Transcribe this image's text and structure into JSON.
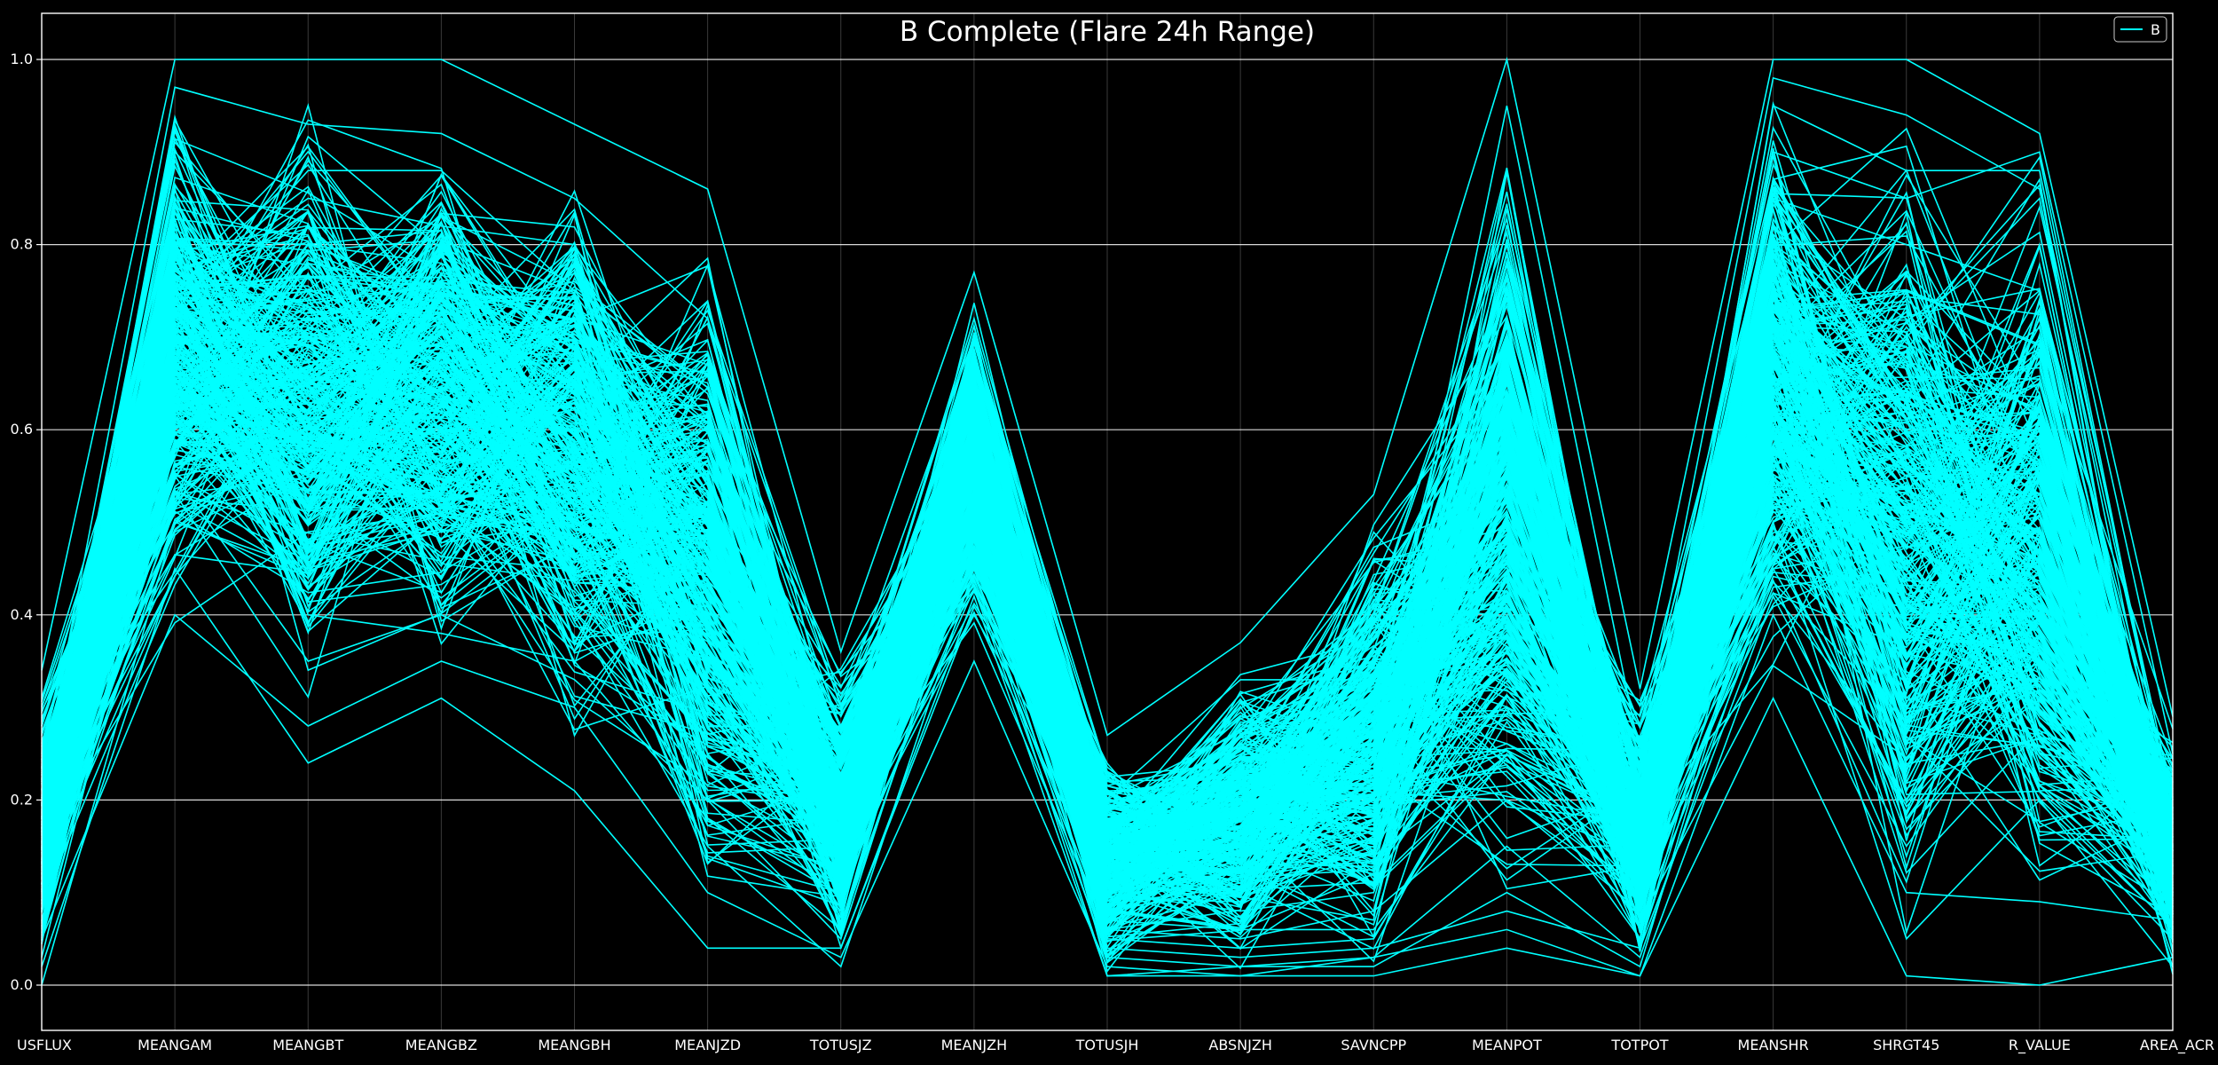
{
  "chart_data": {
    "type": "parallel-coordinates",
    "title": "B Complete (Flare 24h Range)",
    "axes": [
      "USFLUX",
      "MEANGAM",
      "MEANGBT",
      "MEANGBZ",
      "MEANGBH",
      "MEANJZD",
      "TOTUSJZ",
      "MEANJZH",
      "TOTUSJH",
      "ABSNJZH",
      "SAVNCPP",
      "MEANPOT",
      "TOTPOT",
      "MEANSHR",
      "SHRGT45",
      "R_VALUE",
      "AREA_ACR"
    ],
    "ylim": [
      0.0,
      1.0
    ],
    "yticks": [
      "0.0",
      "0.2",
      "0.4",
      "0.6",
      "0.8",
      "1.0"
    ],
    "grid": true,
    "legend": {
      "entries": [
        "B"
      ],
      "placement": "top-right"
    },
    "line_color": "#00ffff",
    "background": "#000000",
    "series_name": "B",
    "typical_range": {
      "USFLUX": [
        0.0,
        0.34
      ],
      "MEANGAM": [
        0.37,
        1.0
      ],
      "MEANGBT": [
        0.24,
        1.0
      ],
      "MEANGBZ": [
        0.31,
        1.0
      ],
      "MEANGBH": [
        0.21,
        0.93
      ],
      "MEANJZD": [
        0.03,
        0.86
      ],
      "TOTUSJZ": [
        0.0,
        0.36
      ],
      "MEANJZH": [
        0.35,
        0.77
      ],
      "TOTUSJH": [
        0.0,
        0.27
      ],
      "ABSNJZH": [
        0.0,
        0.37
      ],
      "SAVNCPP": [
        0.0,
        0.53
      ],
      "MEANPOT": [
        0.04,
        1.0
      ],
      "TOTPOT": [
        0.0,
        0.32
      ],
      "MEANSHR": [
        0.31,
        1.0
      ],
      "SHRGT45": [
        0.01,
        1.0
      ],
      "R_VALUE": [
        0.0,
        0.92
      ],
      "AREA_ACR": [
        0.0,
        0.29
      ]
    },
    "series": [
      {
        "name": "B",
        "values": [
          0.02,
          0.45,
          0.24,
          0.31,
          0.21,
          0.04,
          0.04,
          0.42,
          0.01,
          0.01,
          0.03,
          0.06,
          0.01,
          0.4,
          0.1,
          0.09,
          0.07
        ]
      },
      {
        "name": "B",
        "values": [
          0.34,
          1.0,
          1.0,
          1.0,
          0.93,
          0.86,
          0.36,
          0.77,
          0.27,
          0.37,
          0.53,
          1.0,
          0.32,
          1.0,
          1.0,
          0.92,
          0.29
        ]
      },
      {
        "name": "B",
        "values": [
          0.05,
          0.4,
          0.28,
          0.35,
          0.3,
          0.1,
          0.03,
          0.35,
          0.02,
          0.01,
          0.01,
          0.04,
          0.01,
          0.31,
          0.01,
          0.0,
          0.03
        ]
      },
      {
        "name": "B",
        "values": [
          0.1,
          0.7,
          0.7,
          0.69,
          0.6,
          0.3,
          0.1,
          0.6,
          0.05,
          0.04,
          0.05,
          0.3,
          0.05,
          0.7,
          0.5,
          0.7,
          0.1
        ]
      },
      {
        "name": "B",
        "values": [
          0.22,
          0.97,
          0.93,
          0.92,
          0.85,
          0.72,
          0.3,
          0.7,
          0.2,
          0.17,
          0.25,
          0.95,
          0.25,
          0.98,
          0.94,
          0.86,
          0.2
        ]
      },
      {
        "name": "B",
        "values": [
          0.08,
          0.55,
          0.35,
          0.4,
          0.33,
          0.2,
          0.05,
          0.5,
          0.03,
          0.02,
          0.03,
          0.15,
          0.03,
          0.45,
          0.2,
          0.4,
          0.05
        ]
      },
      {
        "name": "B",
        "values": [
          0.03,
          0.6,
          0.8,
          0.78,
          0.7,
          0.4,
          0.15,
          0.55,
          0.1,
          0.08,
          0.1,
          0.5,
          0.1,
          0.8,
          0.7,
          0.85,
          0.15
        ]
      },
      {
        "name": "B",
        "values": [
          0.15,
          0.85,
          0.6,
          0.55,
          0.5,
          0.25,
          0.08,
          0.65,
          0.06,
          0.05,
          0.08,
          0.2,
          0.08,
          0.6,
          0.3,
          0.55,
          0.08
        ]
      },
      {
        "name": "B",
        "values": [
          0.0,
          0.5,
          0.45,
          0.5,
          0.45,
          0.35,
          0.12,
          0.4,
          0.15,
          0.12,
          0.2,
          0.65,
          0.15,
          0.85,
          0.8,
          0.75,
          0.2
        ]
      },
      {
        "name": "B",
        "values": [
          0.25,
          0.75,
          0.85,
          0.82,
          0.8,
          0.55,
          0.25,
          0.72,
          0.2,
          0.2,
          0.3,
          0.8,
          0.2,
          0.9,
          0.85,
          0.9,
          0.25
        ]
      },
      {
        "name": "B",
        "values": [
          0.12,
          0.65,
          0.5,
          0.6,
          0.4,
          0.15,
          0.02,
          0.45,
          0.01,
          0.02,
          0.02,
          0.1,
          0.02,
          0.5,
          0.05,
          0.2,
          0.02
        ]
      },
      {
        "name": "B",
        "values": [
          0.18,
          0.9,
          0.75,
          0.72,
          0.65,
          0.5,
          0.2,
          0.68,
          0.12,
          0.1,
          0.15,
          0.4,
          0.12,
          0.7,
          0.6,
          0.65,
          0.12
        ]
      },
      {
        "name": "B",
        "values": [
          0.06,
          0.58,
          0.65,
          0.62,
          0.55,
          0.45,
          0.18,
          0.58,
          0.08,
          0.06,
          0.12,
          0.55,
          0.06,
          0.75,
          0.45,
          0.8,
          0.1
        ]
      },
      {
        "name": "B",
        "values": [
          0.28,
          0.8,
          0.4,
          0.38,
          0.35,
          0.18,
          0.06,
          0.48,
          0.04,
          0.03,
          0.04,
          0.08,
          0.04,
          0.42,
          0.15,
          0.35,
          0.06
        ]
      },
      {
        "name": "B",
        "values": [
          0.09,
          0.62,
          0.55,
          0.52,
          0.48,
          0.28,
          0.09,
          0.52,
          0.07,
          0.06,
          0.06,
          0.25,
          0.05,
          0.65,
          0.4,
          0.6,
          0.09
        ]
      },
      {
        "name": "B",
        "values": [
          0.2,
          0.72,
          0.88,
          0.88,
          0.75,
          0.6,
          0.22,
          0.62,
          0.14,
          0.12,
          0.18,
          0.7,
          0.14,
          0.95,
          0.88,
          0.88,
          0.18
        ]
      }
    ]
  }
}
